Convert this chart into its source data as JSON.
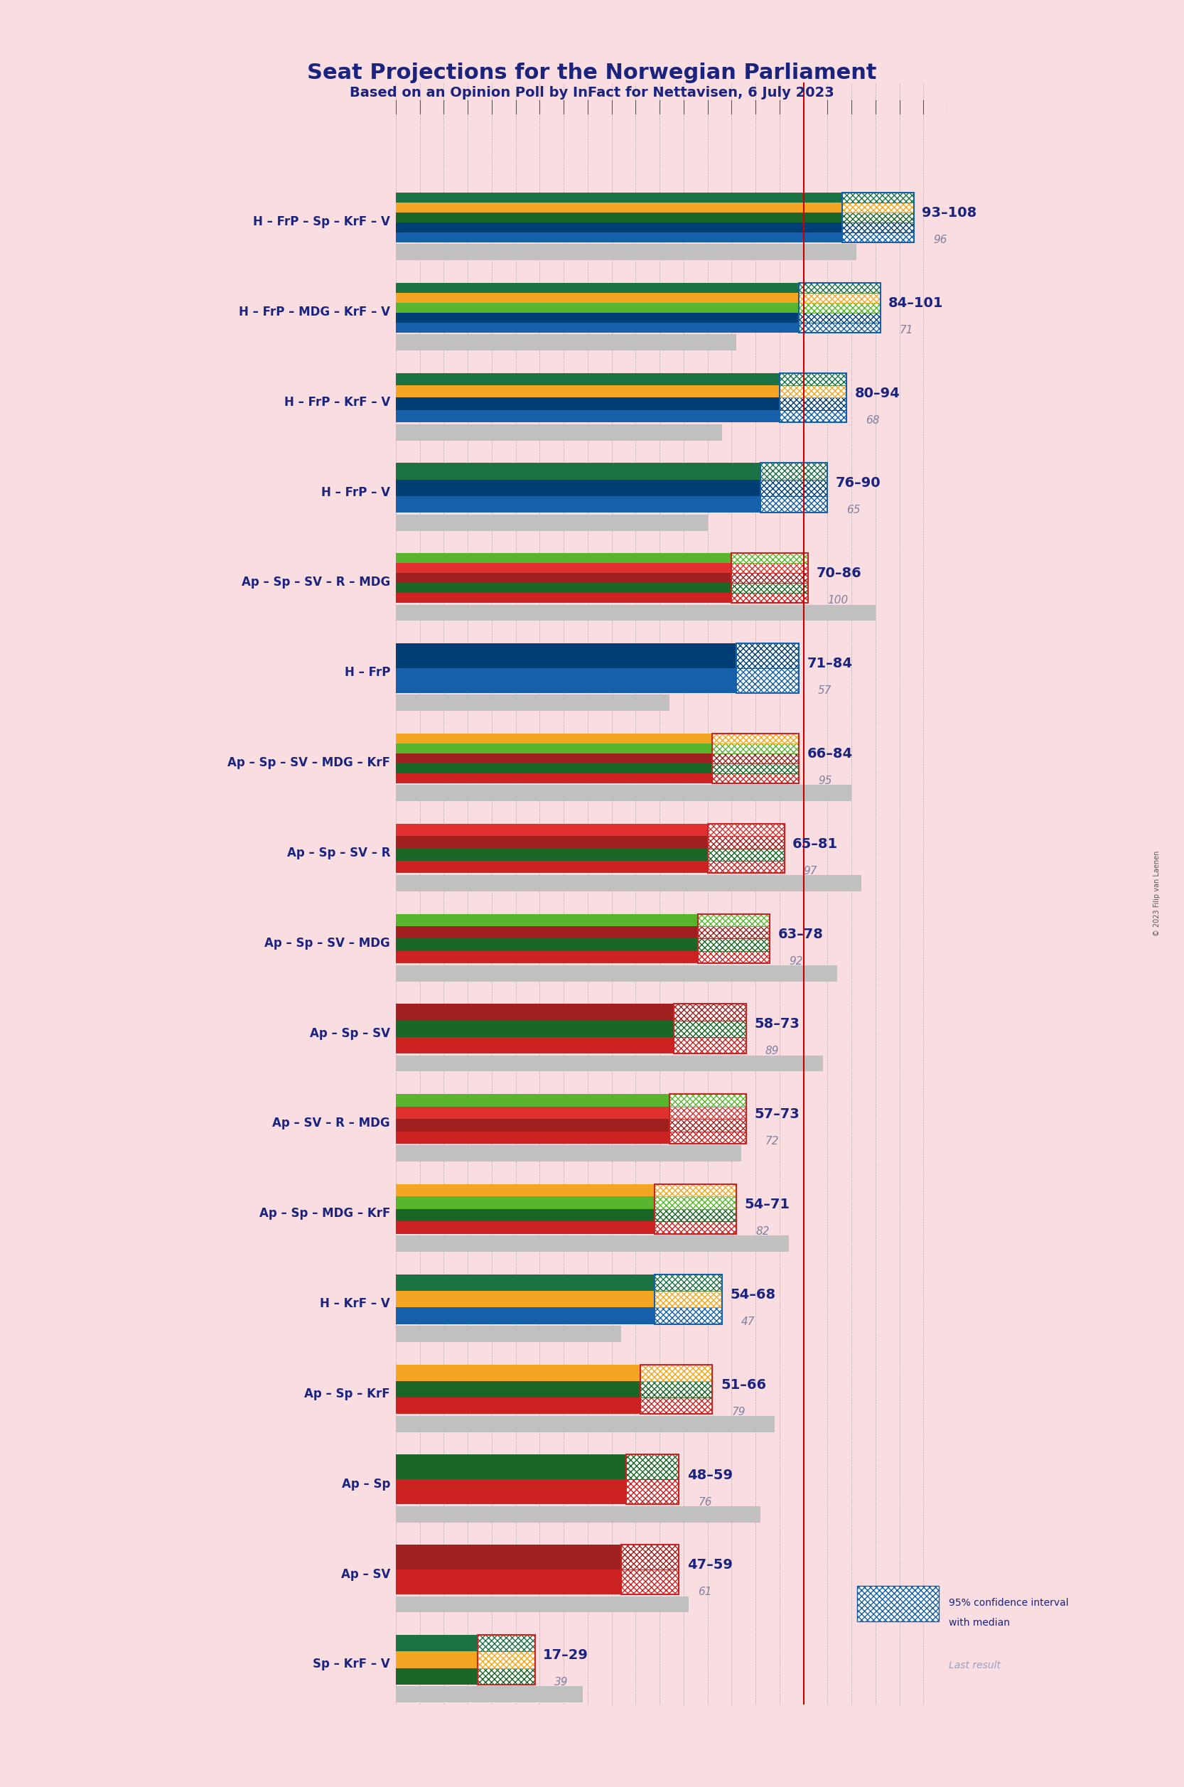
{
  "title": "Seat Projections for the Norwegian Parliament",
  "subtitle": "Based on an Opinion Poll by InFact for Nettavisen, 6 July 2023",
  "copyright": "© 2023 Filip van Laenen",
  "background_color": "#f9dde0",
  "majority_line": 85,
  "x_max": 115,
  "coalitions": [
    {
      "label": "H – FrP – Sp – KrF – V",
      "range_low": 93,
      "range_high": 108,
      "median": 100,
      "last": 96,
      "parties": [
        "H",
        "FrP",
        "Sp",
        "KrF",
        "V"
      ],
      "underline": false
    },
    {
      "label": "H – FrP – MDG – KrF – V",
      "range_low": 84,
      "range_high": 101,
      "median": 92,
      "last": 71,
      "parties": [
        "H",
        "FrP",
        "MDG",
        "KrF",
        "V"
      ],
      "underline": false
    },
    {
      "label": "H – FrP – KrF – V",
      "range_low": 80,
      "range_high": 94,
      "median": 87,
      "last": 68,
      "parties": [
        "H",
        "FrP",
        "KrF",
        "V"
      ],
      "underline": false
    },
    {
      "label": "H – FrP – V",
      "range_low": 76,
      "range_high": 90,
      "median": 83,
      "last": 65,
      "parties": [
        "H",
        "FrP",
        "V"
      ],
      "underline": false
    },
    {
      "label": "Ap – Sp – SV – R – MDG",
      "range_low": 70,
      "range_high": 86,
      "median": 78,
      "last": 100,
      "parties": [
        "Ap",
        "Sp",
        "SV",
        "R",
        "MDG"
      ],
      "underline": false
    },
    {
      "label": "H – FrP",
      "range_low": 71,
      "range_high": 84,
      "median": 77,
      "last": 57,
      "parties": [
        "H",
        "FrP"
      ],
      "underline": false
    },
    {
      "label": "Ap – Sp – SV – MDG – KrF",
      "range_low": 66,
      "range_high": 84,
      "median": 75,
      "last": 95,
      "parties": [
        "Ap",
        "Sp",
        "SV",
        "MDG",
        "KrF"
      ],
      "underline": false
    },
    {
      "label": "Ap – Sp – SV – R",
      "range_low": 65,
      "range_high": 81,
      "median": 73,
      "last": 97,
      "parties": [
        "Ap",
        "Sp",
        "SV",
        "R"
      ],
      "underline": false
    },
    {
      "label": "Ap – Sp – SV – MDG",
      "range_low": 63,
      "range_high": 78,
      "median": 70,
      "last": 92,
      "parties": [
        "Ap",
        "Sp",
        "SV",
        "MDG"
      ],
      "underline": false
    },
    {
      "label": "Ap – Sp – SV",
      "range_low": 58,
      "range_high": 73,
      "median": 65,
      "last": 89,
      "parties": [
        "Ap",
        "Sp",
        "SV"
      ],
      "underline": false
    },
    {
      "label": "Ap – SV – R – MDG",
      "range_low": 57,
      "range_high": 73,
      "median": 65,
      "last": 72,
      "parties": [
        "Ap",
        "SV",
        "R",
        "MDG"
      ],
      "underline": false
    },
    {
      "label": "Ap – Sp – MDG – KrF",
      "range_low": 54,
      "range_high": 71,
      "median": 62,
      "last": 82,
      "parties": [
        "Ap",
        "Sp",
        "MDG",
        "KrF"
      ],
      "underline": false
    },
    {
      "label": "H – KrF – V",
      "range_low": 54,
      "range_high": 68,
      "median": 61,
      "last": 47,
      "parties": [
        "H",
        "KrF",
        "V"
      ],
      "underline": false
    },
    {
      "label": "Ap – Sp – KrF",
      "range_low": 51,
      "range_high": 66,
      "median": 58,
      "last": 79,
      "parties": [
        "Ap",
        "Sp",
        "KrF"
      ],
      "underline": false
    },
    {
      "label": "Ap – Sp",
      "range_low": 48,
      "range_high": 59,
      "median": 53,
      "last": 76,
      "parties": [
        "Ap",
        "Sp"
      ],
      "underline": false
    },
    {
      "label": "Ap – SV",
      "range_low": 47,
      "range_high": 59,
      "median": 53,
      "last": 61,
      "parties": [
        "Ap",
        "SV"
      ],
      "underline": true
    },
    {
      "label": "Sp – KrF – V",
      "range_low": 17,
      "range_high": 29,
      "median": 23,
      "last": 39,
      "parties": [
        "Sp",
        "KrF",
        "V"
      ],
      "underline": false
    }
  ],
  "party_colors": {
    "H": "#1560a8",
    "FrP": "#003e75",
    "Sp": "#1a6626",
    "KrF": "#f4a521",
    "V": "#1b7243",
    "MDG": "#5ab52e",
    "Ap": "#cc2222",
    "SV": "#a02020",
    "R": "#e03030"
  },
  "legend_ci_color": "#1560a8",
  "legend_last_color": "#8080a0",
  "red_line_color": "#cc0000",
  "gray_bar_color": "#c0c0c0",
  "label_color": "#1a237e",
  "range_text_color": "#1a237e",
  "last_text_color": "#8080a0"
}
